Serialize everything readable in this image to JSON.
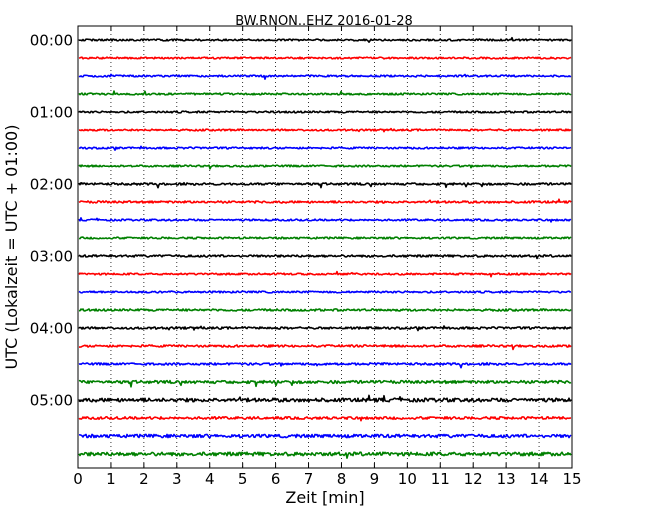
{
  "chart_data": {
    "type": "line",
    "title": "BW.RNON..EHZ 2016-01-28",
    "xlabel": "Zeit  [min]",
    "ylabel": "UTC (Lokalzeit = UTC + 01:00)",
    "xlim": [
      0,
      15
    ],
    "xticks": [
      0,
      1,
      2,
      3,
      4,
      5,
      6,
      7,
      8,
      9,
      10,
      11,
      12,
      13,
      14,
      15
    ],
    "grid": "vertical dotted at each minute",
    "trace_interval_minutes": 15,
    "trace_colors": [
      "#000000",
      "#ff0000",
      "#0000ff",
      "#008000"
    ],
    "time_labels": [
      {
        "label": "00:00",
        "trace_index": 0
      },
      {
        "label": "01:00",
        "trace_index": 4
      },
      {
        "label": "02:00",
        "trace_index": 8
      },
      {
        "label": "03:00",
        "trace_index": 12
      },
      {
        "label": "04:00",
        "trace_index": 16
      },
      {
        "label": "05:00",
        "trace_index": 20
      }
    ],
    "traces": [
      {
        "start": "00:00",
        "amplitude": 0.1
      },
      {
        "start": "00:15",
        "amplitude": 0.1
      },
      {
        "start": "00:30",
        "amplitude": 0.1
      },
      {
        "start": "00:45",
        "amplitude": 0.1
      },
      {
        "start": "01:00",
        "amplitude": 0.1
      },
      {
        "start": "01:15",
        "amplitude": 0.1
      },
      {
        "start": "01:30",
        "amplitude": 0.1
      },
      {
        "start": "01:45",
        "amplitude": 0.1
      },
      {
        "start": "02:00",
        "amplitude": 0.12
      },
      {
        "start": "02:15",
        "amplitude": 0.12
      },
      {
        "start": "02:30",
        "amplitude": 0.1
      },
      {
        "start": "02:45",
        "amplitude": 0.1
      },
      {
        "start": "03:00",
        "amplitude": 0.12
      },
      {
        "start": "03:15",
        "amplitude": 0.1
      },
      {
        "start": "03:30",
        "amplitude": 0.1
      },
      {
        "start": "03:45",
        "amplitude": 0.12
      },
      {
        "start": "04:00",
        "amplitude": 0.12
      },
      {
        "start": "04:15",
        "amplitude": 0.12
      },
      {
        "start": "04:30",
        "amplitude": 0.12
      },
      {
        "start": "04:45",
        "amplitude": 0.16
      },
      {
        "start": "05:00",
        "amplitude": 0.2
      },
      {
        "start": "05:15",
        "amplitude": 0.14
      },
      {
        "start": "05:30",
        "amplitude": 0.18
      },
      {
        "start": "05:45",
        "amplitude": 0.2
      }
    ]
  }
}
